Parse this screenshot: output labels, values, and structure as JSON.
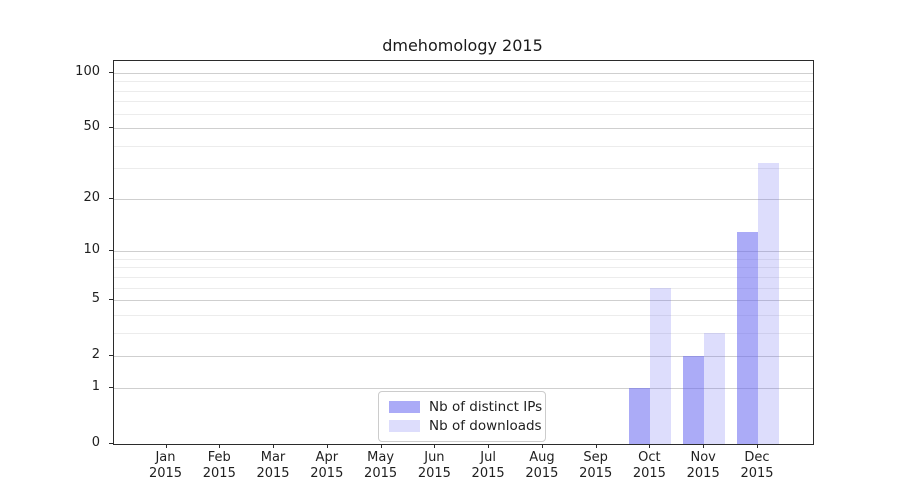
{
  "title": "dmehomology 2015",
  "legend": {
    "items": [
      {
        "label": "Nb of distinct IPs"
      },
      {
        "label": "Nb of downloads"
      }
    ]
  },
  "colors": {
    "bar_distinct_ips": "rgba(102,102,240,0.55)",
    "bar_downloads": "rgba(102,102,240,0.22)",
    "major_grid": "#cfcfcf",
    "minor_grid": "#ececec",
    "spine": "#2b2b2b"
  },
  "chart_data": {
    "type": "bar",
    "title": "dmehomology 2015",
    "categories": [
      "Jan 2015",
      "Feb 2015",
      "Mar 2015",
      "Apr 2015",
      "May 2015",
      "Jun 2015",
      "Jul 2015",
      "Aug 2015",
      "Sep 2015",
      "Oct 2015",
      "Nov 2015",
      "Dec 2015"
    ],
    "series": [
      {
        "name": "Nb of distinct IPs",
        "color": "rgba(102,102,240,0.55)",
        "values": [
          0,
          0,
          0,
          0,
          0,
          0,
          0,
          0,
          0,
          1,
          2,
          13
        ]
      },
      {
        "name": "Nb of downloads",
        "color": "rgba(102,102,240,0.22)",
        "values": [
          0,
          0,
          0,
          0,
          0,
          0,
          0,
          0,
          0,
          6,
          3,
          32
        ]
      }
    ],
    "xlabel": "",
    "ylabel": "",
    "yscale": "log1p",
    "y_ticks": [
      0,
      1,
      2,
      5,
      10,
      20,
      50,
      100
    ],
    "y_minor_ticks": [
      3,
      4,
      6,
      7,
      8,
      9,
      30,
      40,
      60,
      70,
      80,
      90
    ],
    "ylim": [
      0,
      116
    ],
    "grid": "horizontal",
    "legend_position": "lower center"
  }
}
